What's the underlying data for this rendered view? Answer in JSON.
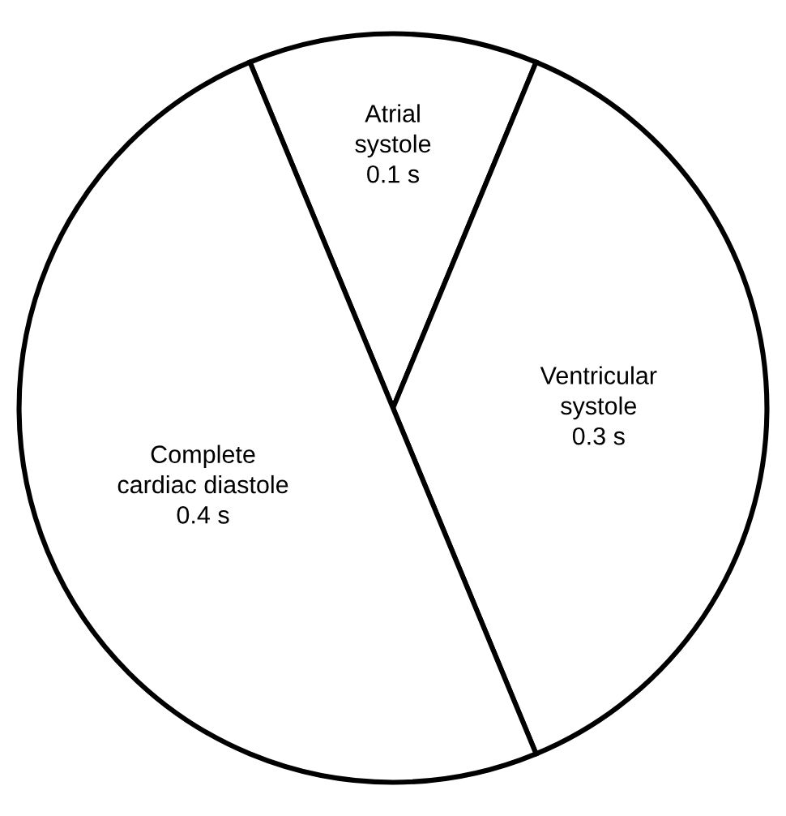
{
  "chart_data": {
    "type": "pie",
    "categories": [
      "Atrial\nsystole",
      "Ventricular\nsystole",
      "Complete\ncardiac diastole"
    ],
    "values": [
      0.1,
      0.3,
      0.4
    ],
    "value_labels": [
      "0.1 s",
      "0.3 s",
      "0.4 s"
    ],
    "colors": [
      "#ffffff",
      "#ffffff",
      "#ffffff"
    ]
  }
}
